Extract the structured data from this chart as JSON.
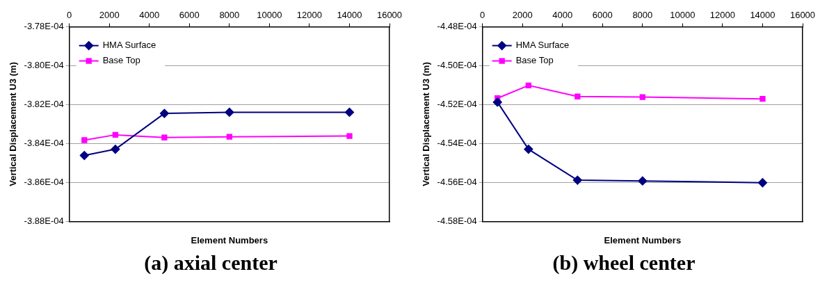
{
  "chart_data": [
    {
      "type": "line",
      "xlabel": "Element Numbers",
      "ylabel": "Vertical Displacement U3 (m)",
      "annotations": [
        "(a) axial center"
      ],
      "x": [
        750,
        2300,
        4750,
        8000,
        14000
      ],
      "xlim": [
        0,
        16000
      ],
      "xticks": [
        0,
        2000,
        4000,
        6000,
        8000,
        10000,
        12000,
        14000,
        16000
      ],
      "ylim": [
        -0.000388,
        -0.000378
      ],
      "yticks": [
        {
          "value": -0.000388,
          "label": "-3.88E-04"
        },
        {
          "value": -0.000386,
          "label": "-3.86E-04"
        },
        {
          "value": -0.000384,
          "label": "-3.84E-04"
        },
        {
          "value": -0.000382,
          "label": "-3.82E-04"
        },
        {
          "value": -0.00038,
          "label": "-3.80E-04"
        },
        {
          "value": -0.000378,
          "label": "-3.78E-04"
        }
      ],
      "grid": "y",
      "legend": "top left",
      "series": [
        {
          "name": "HMA Surface",
          "color": "#000080",
          "marker": "diamond",
          "values": [
            -0.00038461,
            -0.00038429,
            -0.00038245,
            -0.00038239,
            -0.00038239
          ]
        },
        {
          "name": "Base Top",
          "color": "#ff00ff",
          "marker": "square",
          "values": [
            -0.00038382,
            -0.00038355,
            -0.00038369,
            -0.00038365,
            -0.00038361
          ]
        }
      ]
    },
    {
      "type": "line",
      "xlabel": "Element Numbers",
      "ylabel": "Vertical Displacement U3 (m)",
      "annotations": [
        "(b) wheel center"
      ],
      "x": [
        750,
        2300,
        4750,
        8000,
        14000
      ],
      "xlim": [
        0,
        16000
      ],
      "xticks": [
        0,
        2000,
        4000,
        6000,
        8000,
        10000,
        12000,
        14000,
        16000
      ],
      "ylim": [
        -0.000458,
        -0.000448
      ],
      "yticks": [
        {
          "value": -0.000458,
          "label": "-4.58E-04"
        },
        {
          "value": -0.000456,
          "label": "-4.56E-04"
        },
        {
          "value": -0.000454,
          "label": "-4.54E-04"
        },
        {
          "value": -0.000452,
          "label": "-4.52E-04"
        },
        {
          "value": -0.00045,
          "label": "-4.50E-04"
        },
        {
          "value": -0.000448,
          "label": "-4.48E-04"
        }
      ],
      "grid": "y",
      "legend": "top left",
      "series": [
        {
          "name": "HMA Surface",
          "color": "#000080",
          "marker": "diamond",
          "values": [
            -0.00045187,
            -0.00045429,
            -0.00045588,
            -0.00045592,
            -0.00045601
          ]
        },
        {
          "name": "Base Top",
          "color": "#ff00ff",
          "marker": "square",
          "values": [
            -0.00045167,
            -0.00045101,
            -0.00045158,
            -0.00045161,
            -0.0004517
          ]
        }
      ]
    }
  ]
}
